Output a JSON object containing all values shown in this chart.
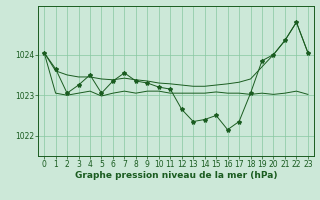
{
  "xlabel": "Graphe pression niveau de la mer (hPa)",
  "background_color": "#cce8d8",
  "grid_color": "#88c8a0",
  "line_color": "#1a5c20",
  "xlim": [
    -0.5,
    23.5
  ],
  "ylim": [
    1021.5,
    1025.2
  ],
  "yticks": [
    1022,
    1023,
    1024
  ],
  "xticks": [
    0,
    1,
    2,
    3,
    4,
    5,
    6,
    7,
    8,
    9,
    10,
    11,
    12,
    13,
    14,
    15,
    16,
    17,
    18,
    19,
    20,
    21,
    22,
    23
  ],
  "label_fontsize": 6.5,
  "tick_fontsize": 5.5,
  "hours": [
    0,
    1,
    2,
    3,
    4,
    5,
    6,
    7,
    8,
    9,
    10,
    11,
    12,
    13,
    14,
    15,
    16,
    17,
    18,
    19,
    20,
    21,
    22,
    23
  ],
  "p_main": [
    1024.05,
    1023.65,
    1023.05,
    1023.25,
    1023.5,
    1023.05,
    1023.35,
    1023.55,
    1023.35,
    1023.3,
    1023.2,
    1023.15,
    1022.65,
    1022.35,
    1022.4,
    1022.5,
    1022.15,
    1022.35,
    1023.05,
    1023.85,
    1024.0,
    1024.35,
    1024.8,
    1024.05
  ],
  "p_upper": [
    1024.05,
    1023.6,
    1023.5,
    1023.45,
    1023.45,
    1023.4,
    1023.38,
    1023.42,
    1023.38,
    1023.35,
    1023.3,
    1023.28,
    1023.25,
    1023.22,
    1023.22,
    1023.25,
    1023.28,
    1023.32,
    1023.4,
    1023.7,
    1024.0,
    1024.35,
    1024.8,
    1024.05
  ],
  "p_lower": [
    1024.05,
    1023.05,
    1023.0,
    1023.05,
    1023.1,
    1022.98,
    1023.05,
    1023.1,
    1023.05,
    1023.1,
    1023.1,
    1023.05,
    1023.05,
    1023.05,
    1023.05,
    1023.08,
    1023.05,
    1023.05,
    1023.02,
    1023.05,
    1023.02,
    1023.05,
    1023.1,
    1023.02
  ]
}
